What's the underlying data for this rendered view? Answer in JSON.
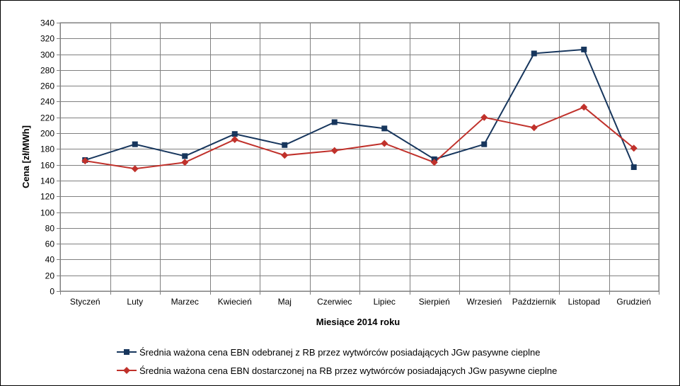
{
  "chart_data": {
    "type": "line",
    "xlabel": "Miesiące 2014 roku",
    "ylabel": "Cena [zł/MWh]",
    "ylim": [
      0,
      340
    ],
    "yticks": [
      0,
      20,
      40,
      60,
      80,
      100,
      120,
      140,
      160,
      180,
      200,
      220,
      240,
      260,
      280,
      300,
      320,
      340
    ],
    "categories": [
      "Styczeń",
      "Luty",
      "Marzec",
      "Kwiecień",
      "Maj",
      "Czerwiec",
      "Lipiec",
      "Sierpień",
      "Wrzesień",
      "Październik",
      "Listopad",
      "Grudzień"
    ],
    "grid": true,
    "legend_position": "bottom",
    "series": [
      {
        "name": "Średnia ważona cena EBN odebranej z RB przez wytwórców posiadających JGw pasywne cieplne",
        "color": "#17365d",
        "marker": "square",
        "values": [
          166,
          186,
          171,
          199,
          185,
          214,
          206,
          167,
          186,
          301,
          306,
          157
        ]
      },
      {
        "name": "Średnia ważona cena EBN dostarczonej na RB przez wytwórców posiadających JGw pasywne cieplne",
        "color": "#c0312b",
        "marker": "diamond",
        "values": [
          165,
          155,
          163,
          192,
          172,
          178,
          187,
          163,
          220,
          207,
          233,
          181
        ]
      }
    ]
  }
}
